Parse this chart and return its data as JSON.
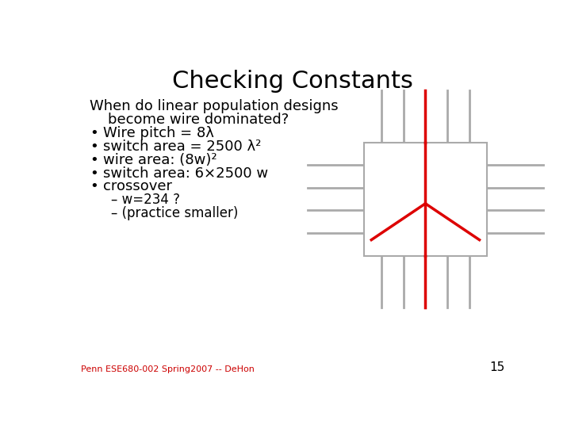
{
  "title": "Checking Constants",
  "title_fontsize": 22,
  "background_color": "#ffffff",
  "text_color": "#000000",
  "footer_text": "Penn ESE680-002 Spring2007 -- DeHon",
  "footer_color": "#cc0000",
  "page_number": "15",
  "intro_line1": "When do linear population designs",
  "intro_line2": "    become wire dominated?",
  "bullets": [
    "Wire pitch = 8λ",
    "switch area = 2500 λ²",
    "wire area: (8w)²",
    "switch area: 6×2500 w",
    "crossover"
  ],
  "sub_bullets": [
    "– w=234 ?",
    "– (practice smaller)"
  ],
  "bullet_fontsize": 13,
  "intro_fontsize": 13,
  "sub_bullet_fontsize": 12,
  "footer_fontsize": 8,
  "page_num_fontsize": 11,
  "gray": "#aaaaaa",
  "red": "#dd0000",
  "lw_gray": 2.0,
  "lw_red": 2.5
}
